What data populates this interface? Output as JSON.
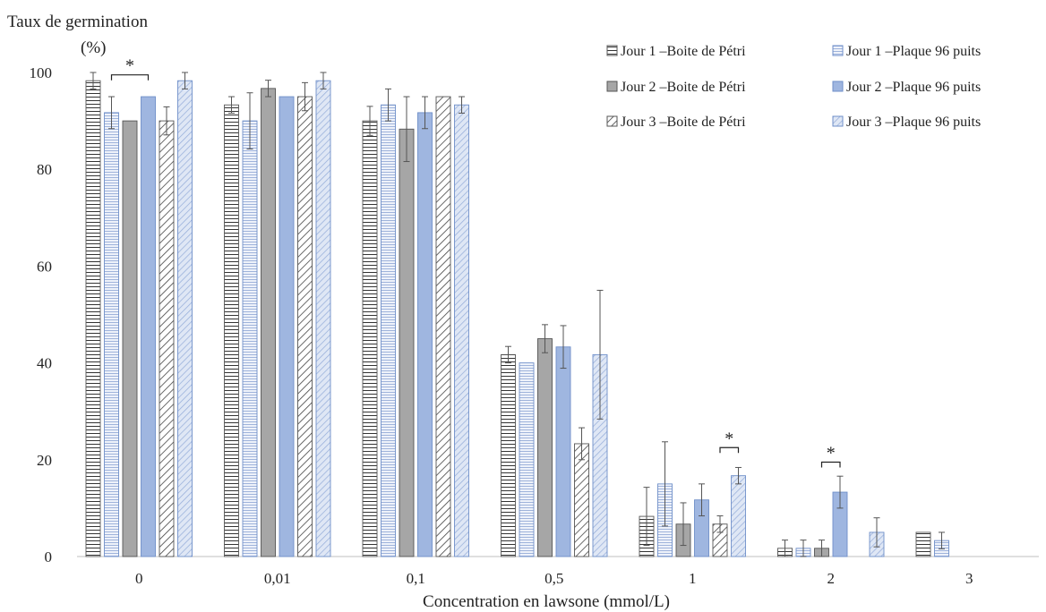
{
  "chart_data": {
    "type": "bar",
    "ylabel_line1": "Taux de germination",
    "ylabel_line2": "(%)",
    "xlabel": "Concentration en lawsone (mmol/L)",
    "categories": [
      "0",
      "0,01",
      "0,1",
      "0,5",
      "1",
      "2",
      "3"
    ],
    "ylim": [
      0,
      100
    ],
    "yticks": [
      0,
      20,
      40,
      60,
      80,
      100
    ],
    "grid": false,
    "legend_position": "top-right",
    "series": [
      {
        "name": "Jour 1 –Boite de Pétri",
        "pattern": "hlines",
        "color": "#444444",
        "values": [
          98.3,
          93.3,
          90,
          41.7,
          8.3,
          1.7,
          5
        ],
        "errors": [
          1.7,
          1.7,
          3,
          1.7,
          6,
          1.7,
          0
        ]
      },
      {
        "name": "Jour 1 –Plaque 96 puits",
        "pattern": "hlines-blue",
        "color": "#8fa9d6",
        "values": [
          91.7,
          90,
          93.3,
          40,
          15,
          1.7,
          3.3
        ],
        "errors": [
          3.3,
          5.8,
          3.3,
          0,
          8.7,
          1.7,
          1.7
        ]
      },
      {
        "name": "Jour 2 –Boite de Pétri",
        "pattern": "solid-grey",
        "color": "#a6a6a6",
        "values": [
          90,
          96.7,
          88.3,
          45,
          6.7,
          1.7,
          0
        ],
        "errors": [
          0,
          1.7,
          6.7,
          2.9,
          4.4,
          1.7,
          0
        ]
      },
      {
        "name": "Jour 2 –Plaque 96 puits",
        "pattern": "solid-blue",
        "color": "#9fb6e0",
        "values": [
          95,
          95,
          91.7,
          43.3,
          11.7,
          13.3,
          0
        ],
        "errors": [
          0,
          0,
          3.3,
          4.4,
          3.3,
          3.3,
          0
        ]
      },
      {
        "name": "Jour 3 –Boite de Pétri",
        "pattern": "diag",
        "color": "#555555",
        "values": [
          90,
          95,
          95,
          23.3,
          6.7,
          0,
          0
        ],
        "errors": [
          2.9,
          2.9,
          0,
          3.3,
          1.7,
          0,
          0
        ]
      },
      {
        "name": "Jour 3 –Plaque 96 puits",
        "pattern": "diag-blue",
        "color": "#8fa9d6",
        "values": [
          98.3,
          98.3,
          93.3,
          41.7,
          16.7,
          5,
          0
        ],
        "errors": [
          1.7,
          1.7,
          1.7,
          13.3,
          1.7,
          3,
          0
        ]
      }
    ],
    "annotations": [
      {
        "text": "*",
        "category_index": 0,
        "from_series": 1,
        "to_series": 3,
        "y": 99.5
      },
      {
        "text": "*",
        "category_index": 4,
        "from_series": 4,
        "to_series": 5,
        "y": 22.5
      },
      {
        "text": "*",
        "category_index": 5,
        "from_series": 2,
        "to_series": 3,
        "y": 19.5
      }
    ]
  }
}
